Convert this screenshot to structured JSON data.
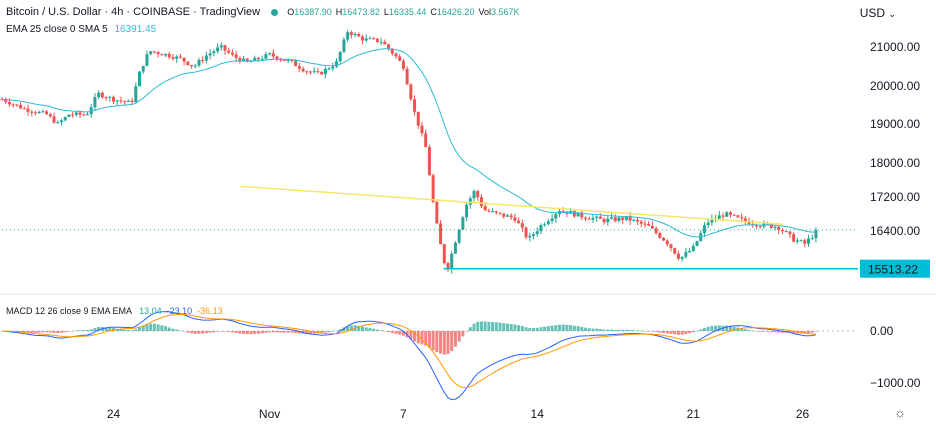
{
  "header": {
    "symbol_line": "Bitcoin / U.S. Dollar · 4h · COINBASE · TradingView",
    "ohlc": [
      {
        "k": "O",
        "v": "16387.90"
      },
      {
        "k": "H",
        "v": "16473.82"
      },
      {
        "k": "L",
        "v": "16335.44"
      },
      {
        "k": "C",
        "v": "16426.20"
      },
      {
        "k": "Vol",
        "v": "3.567K"
      }
    ],
    "ema_label": "EMA 25 close 0 SMA 5",
    "ema_value": "16391.45",
    "currency": "USD",
    "macd_label": "MACD 12 26 close 9 EMA EMA",
    "macd_values": [
      "13.04",
      "-23.10",
      "-36.13"
    ]
  },
  "colors": {
    "up": "#26a69a",
    "down": "#ef5350",
    "ema": "#2bbcd4",
    "trendline": "#f5e663",
    "support": "#00bcd4",
    "macd_line": "#2962ff",
    "signal_line": "#ff9800",
    "price_dots": "#26a69a"
  },
  "chart_data": [
    {
      "type": "candlestick",
      "title": "Bitcoin / U.S. Dollar · 4h · COINBASE",
      "x_ticks": [
        "24",
        "Nov",
        "7",
        "14",
        "21",
        "26"
      ],
      "y_ticks": [
        21000,
        20000,
        19000,
        18000,
        17200,
        16400
      ],
      "y_tick_labels": [
        "21000.00",
        "20000.00",
        "19000.00",
        "18000.00",
        "17200.00",
        "16400.00"
      ],
      "ylim": [
        15300,
        21800
      ],
      "support_level": 15513.22,
      "support_label": "15513.22",
      "trendline": [
        {
          "x": 10.7,
          "y": 17450
        },
        {
          "x": 35.0,
          "y": 16560
        }
      ],
      "ema_period": 25,
      "last_close": 16426.2,
      "series_close_by_day": [
        [
          0,
          19650
        ],
        [
          1.0,
          19400
        ],
        [
          2.0,
          19250
        ],
        [
          2.5,
          19000
        ],
        [
          3.0,
          19250
        ],
        [
          3.8,
          19250
        ],
        [
          4.3,
          19800
        ],
        [
          5.0,
          19650
        ],
        [
          5.8,
          19550
        ],
        [
          6.2,
          20400
        ],
        [
          6.6,
          20900
        ],
        [
          7.4,
          20800
        ],
        [
          8.0,
          20700
        ],
        [
          8.6,
          20500
        ],
        [
          9.2,
          20800
        ],
        [
          9.8,
          21000
        ],
        [
          10.4,
          20750
        ],
        [
          11.0,
          20600
        ],
        [
          12.0,
          20800
        ],
        [
          13.0,
          20600
        ],
        [
          13.6,
          20400
        ],
        [
          14.2,
          20300
        ],
        [
          15.0,
          20600
        ],
        [
          15.5,
          21400
        ],
        [
          16.2,
          21200
        ],
        [
          17.0,
          21150
        ],
        [
          17.6,
          20800
        ],
        [
          18.0,
          20500
        ],
        [
          18.5,
          19300
        ],
        [
          19.0,
          18400
        ],
        [
          19.4,
          16800
        ],
        [
          19.8,
          15700
        ],
        [
          20.0,
          15550
        ],
        [
          20.4,
          16300
        ],
        [
          20.8,
          17000
        ],
        [
          21.2,
          17350
        ],
        [
          21.6,
          16900
        ],
        [
          22.2,
          16800
        ],
        [
          23.0,
          16700
        ],
        [
          23.6,
          16200
        ],
        [
          24.2,
          16550
        ],
        [
          25.0,
          16900
        ],
        [
          26.0,
          16750
        ],
        [
          27.0,
          16650
        ],
        [
          28.0,
          16700
        ],
        [
          29.0,
          16500
        ],
        [
          29.8,
          16150
        ],
        [
          30.4,
          15750
        ],
        [
          31.0,
          16000
        ],
        [
          31.6,
          16600
        ],
        [
          32.4,
          16800
        ],
        [
          33.2,
          16650
        ],
        [
          34.0,
          16550
        ],
        [
          34.8,
          16500
        ],
        [
          35.5,
          16200
        ],
        [
          36.0,
          16100
        ],
        [
          36.6,
          16426
        ]
      ]
    },
    {
      "type": "macd",
      "title": "MACD 12 26 close 9 EMA EMA",
      "y_ticks": [
        0,
        -1000
      ],
      "y_tick_labels": [
        "0.00",
        "−1000.00"
      ],
      "ylim": [
        -1200,
        300
      ]
    }
  ]
}
